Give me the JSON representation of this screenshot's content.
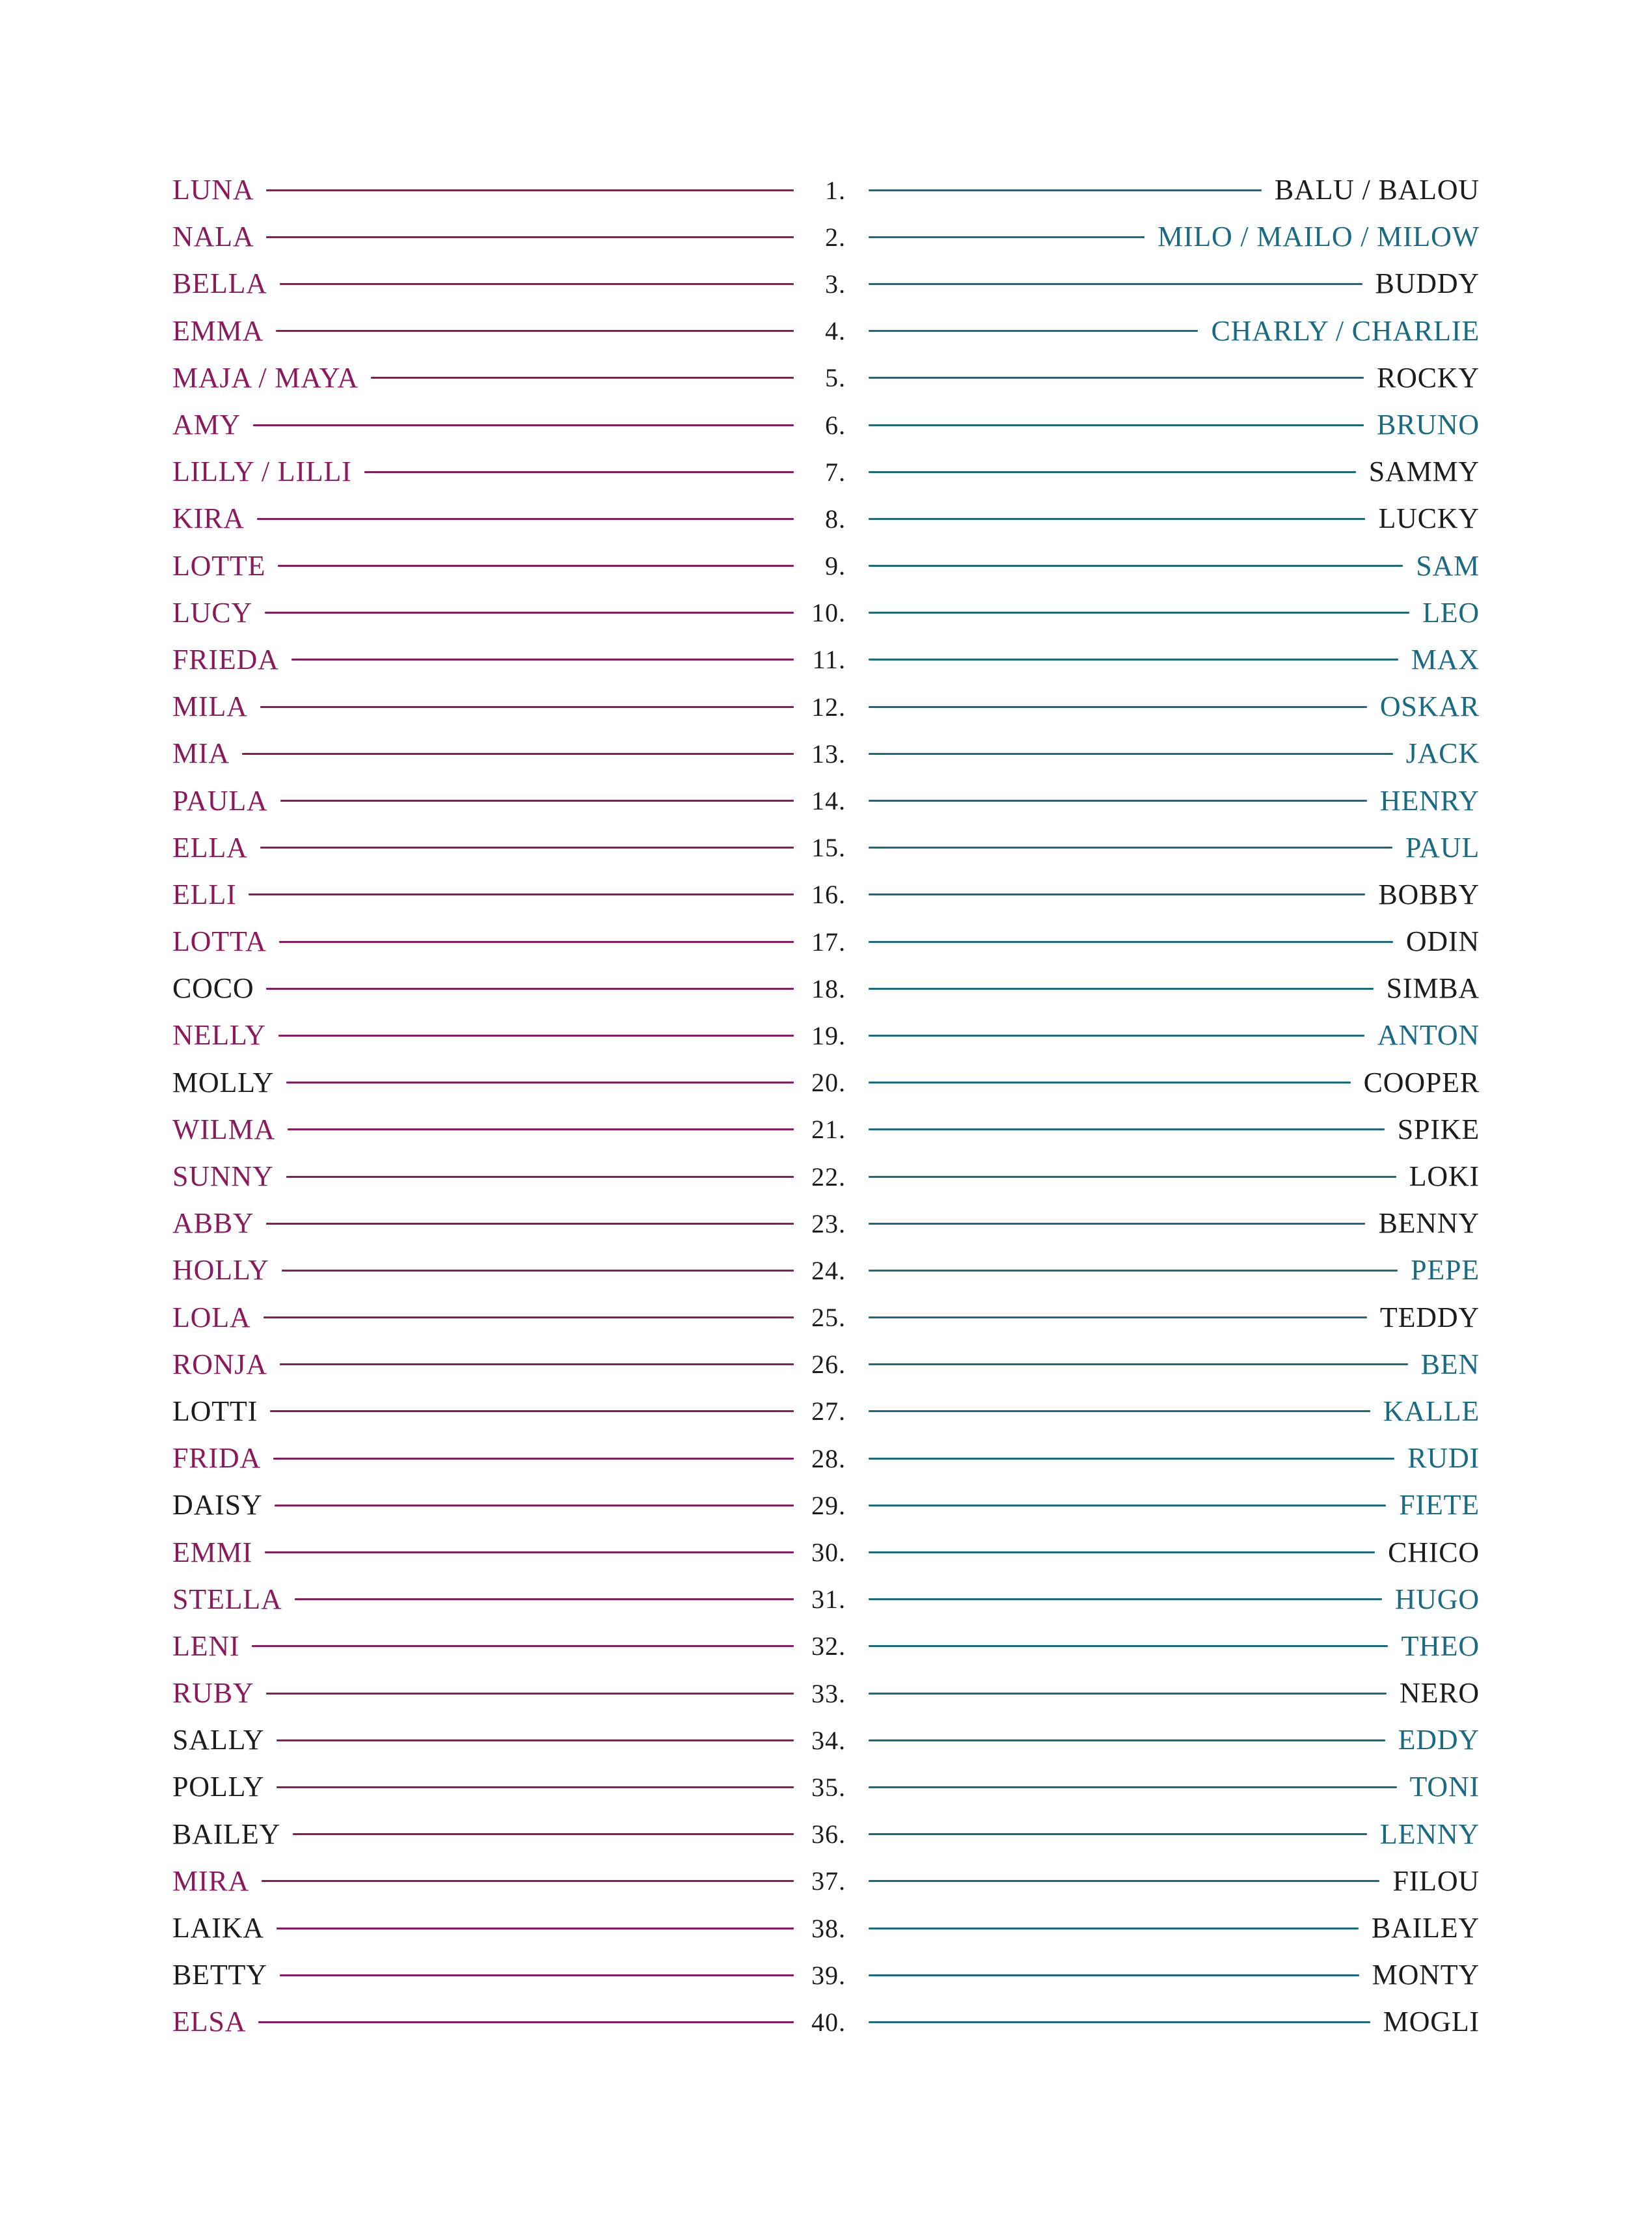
{
  "colors": {
    "magenta": "#8a1a59",
    "teal": "#1a6a82",
    "black": "#1c1c1c",
    "left_line": "#8a1a59",
    "right_line": "#19697f"
  },
  "rows": [
    {
      "number": "1.",
      "female": "LUNA",
      "female_color": "magenta",
      "male": "BALU / BALOU",
      "male_color": "black"
    },
    {
      "number": "2.",
      "female": "NALA",
      "female_color": "magenta",
      "male": "MILO / MAILO / MILOW",
      "male_color": "teal"
    },
    {
      "number": "3.",
      "female": "BELLA",
      "female_color": "magenta",
      "male": "BUDDY",
      "male_color": "black"
    },
    {
      "number": "4.",
      "female": "EMMA",
      "female_color": "magenta",
      "male": "CHARLY / CHARLIE",
      "male_color": "teal"
    },
    {
      "number": "5.",
      "female": "MAJA / MAYA",
      "female_color": "magenta",
      "male": "ROCKY",
      "male_color": "black"
    },
    {
      "number": "6.",
      "female": "AMY",
      "female_color": "magenta",
      "male": "BRUNO",
      "male_color": "teal"
    },
    {
      "number": "7.",
      "female": "LILLY / LILLI",
      "female_color": "magenta",
      "male": "SAMMY",
      "male_color": "black"
    },
    {
      "number": "8.",
      "female": "KIRA",
      "female_color": "magenta",
      "male": "LUCKY",
      "male_color": "black"
    },
    {
      "number": "9.",
      "female": "LOTTE",
      "female_color": "magenta",
      "male": "SAM",
      "male_color": "teal"
    },
    {
      "number": "10.",
      "female": "LUCY",
      "female_color": "magenta",
      "male": "LEO",
      "male_color": "teal"
    },
    {
      "number": "11.",
      "female": "FRIEDA",
      "female_color": "magenta",
      "male": "MAX",
      "male_color": "teal"
    },
    {
      "number": "12.",
      "female": "MILA",
      "female_color": "magenta",
      "male": "OSKAR",
      "male_color": "teal"
    },
    {
      "number": "13.",
      "female": "MIA",
      "female_color": "magenta",
      "male": "JACK",
      "male_color": "teal"
    },
    {
      "number": "14.",
      "female": "PAULA",
      "female_color": "magenta",
      "male": "HENRY",
      "male_color": "teal"
    },
    {
      "number": "15.",
      "female": "ELLA",
      "female_color": "magenta",
      "male": "PAUL",
      "male_color": "teal"
    },
    {
      "number": "16.",
      "female": "ELLI",
      "female_color": "magenta",
      "male": "BOBBY",
      "male_color": "black"
    },
    {
      "number": "17.",
      "female": "LOTTA",
      "female_color": "magenta",
      "male": "ODIN",
      "male_color": "black"
    },
    {
      "number": "18.",
      "female": "COCO",
      "female_color": "black",
      "male": "SIMBA",
      "male_color": "black"
    },
    {
      "number": "19.",
      "female": "NELLY",
      "female_color": "magenta",
      "male": "ANTON",
      "male_color": "teal"
    },
    {
      "number": "20.",
      "female": "MOLLY",
      "female_color": "black",
      "male": "COOPER",
      "male_color": "black"
    },
    {
      "number": "21.",
      "female": "WILMA",
      "female_color": "magenta",
      "male": "SPIKE",
      "male_color": "black"
    },
    {
      "number": "22.",
      "female": "SUNNY",
      "female_color": "magenta",
      "male": "LOKI",
      "male_color": "black"
    },
    {
      "number": "23.",
      "female": "ABBY",
      "female_color": "magenta",
      "male": "BENNY",
      "male_color": "black"
    },
    {
      "number": "24.",
      "female": "HOLLY",
      "female_color": "magenta",
      "male": "PEPE",
      "male_color": "teal"
    },
    {
      "number": "25.",
      "female": "LOLA",
      "female_color": "magenta",
      "male": "TEDDY",
      "male_color": "black"
    },
    {
      "number": "26.",
      "female": "RONJA",
      "female_color": "magenta",
      "male": "BEN",
      "male_color": "teal"
    },
    {
      "number": "27.",
      "female": "LOTTI",
      "female_color": "black",
      "male": "KALLE",
      "male_color": "teal"
    },
    {
      "number": "28.",
      "female": "FRIDA",
      "female_color": "magenta",
      "male": "RUDI",
      "male_color": "teal"
    },
    {
      "number": "29.",
      "female": "DAISY",
      "female_color": "black",
      "male": "FIETE",
      "male_color": "teal"
    },
    {
      "number": "30.",
      "female": "EMMI",
      "female_color": "magenta",
      "male": "CHICO",
      "male_color": "black"
    },
    {
      "number": "31.",
      "female": "STELLA",
      "female_color": "magenta",
      "male": "HUGO",
      "male_color": "teal"
    },
    {
      "number": "32.",
      "female": "LENI",
      "female_color": "magenta",
      "male": "THEO",
      "male_color": "teal"
    },
    {
      "number": "33.",
      "female": "RUBY",
      "female_color": "magenta",
      "male": "NERO",
      "male_color": "black"
    },
    {
      "number": "34.",
      "female": "SALLY",
      "female_color": "black",
      "male": "EDDY",
      "male_color": "teal"
    },
    {
      "number": "35.",
      "female": "POLLY",
      "female_color": "black",
      "male": "TONI",
      "male_color": "teal"
    },
    {
      "number": "36.",
      "female": "BAILEY",
      "female_color": "black",
      "male": "LENNY",
      "male_color": "teal"
    },
    {
      "number": "37.",
      "female": "MIRA",
      "female_color": "magenta",
      "male": "FILOU",
      "male_color": "black"
    },
    {
      "number": "38.",
      "female": "LAIKA",
      "female_color": "black",
      "male": "BAILEY",
      "male_color": "black"
    },
    {
      "number": "39.",
      "female": "BETTY",
      "female_color": "black",
      "male": "MONTY",
      "male_color": "black"
    },
    {
      "number": "40.",
      "female": "ELSA",
      "female_color": "magenta",
      "male": "MOGLI",
      "male_color": "black"
    }
  ]
}
